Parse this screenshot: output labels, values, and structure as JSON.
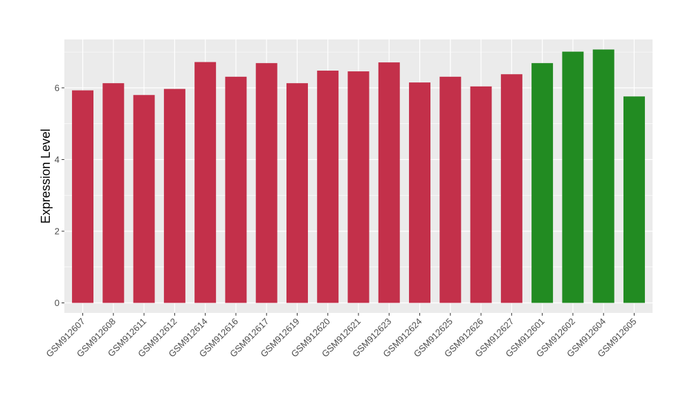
{
  "chart_data": {
    "type": "bar",
    "title": "",
    "xlabel": "",
    "ylabel": "Expression Level",
    "ylim": [
      -0.28,
      7.35
    ],
    "yticks": [
      0,
      2,
      4,
      6
    ],
    "grid": true,
    "legend": "none",
    "panel_background": "#ebebeb",
    "grid_color": "#ffffff",
    "categories": [
      "GSM912607",
      "GSM912608",
      "GSM912611",
      "GSM912612",
      "GSM912614",
      "GSM912616",
      "GSM912617",
      "GSM912619",
      "GSM912620",
      "GSM912621",
      "GSM912623",
      "GSM912624",
      "GSM912625",
      "GSM912626",
      "GSM912627",
      "GSM912601",
      "GSM912602",
      "GSM912604",
      "GSM912605"
    ],
    "values": [
      5.93,
      6.13,
      5.8,
      5.97,
      6.72,
      6.31,
      6.69,
      6.13,
      6.48,
      6.46,
      6.71,
      6.15,
      6.31,
      6.04,
      6.38,
      6.69,
      7.01,
      7.07,
      5.76
    ],
    "bar_colors": [
      "#c3304a",
      "#c3304a",
      "#c3304a",
      "#c3304a",
      "#c3304a",
      "#c3304a",
      "#c3304a",
      "#c3304a",
      "#c3304a",
      "#c3304a",
      "#c3304a",
      "#c3304a",
      "#c3304a",
      "#c3304a",
      "#c3304a",
      "#228b22",
      "#228b22",
      "#228b22",
      "#228b22"
    ]
  }
}
